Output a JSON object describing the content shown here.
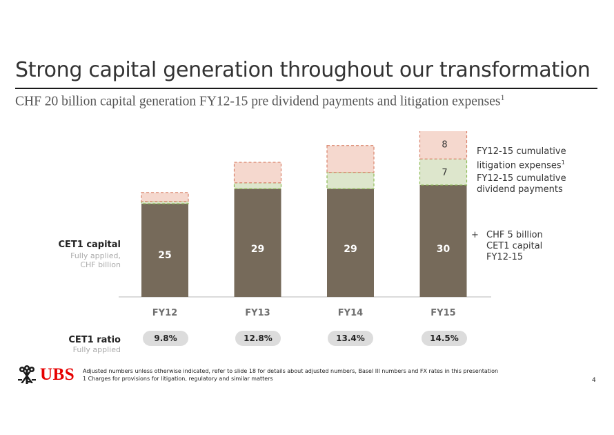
{
  "slide": {
    "title": "Strong capital generation throughout our transformation",
    "subtitle": "CHF 20 billion capital generation FY12-15 pre dividend payments and litigation expenses",
    "subtitle_sup": "1",
    "page_number": "4"
  },
  "labels": {
    "cet1_capital": "CET1 capital",
    "cet1_capital_sub1": "Fully applied,",
    "cet1_capital_sub2": "CHF billion",
    "cet1_ratio": "CET1 ratio",
    "cet1_ratio_sub": "Fully applied"
  },
  "legend": {
    "litigation_line1": "FY12-15 cumulative",
    "litigation_line2": "litigation expenses",
    "litigation_sup": "1",
    "dividend_line1": "FY12-15 cumulative",
    "dividend_line2": "dividend payments",
    "plus_sign": "+",
    "capital_line1": "CHF 5 billion",
    "capital_line2": "CET1 capital",
    "capital_line3": "FY12-15"
  },
  "ratios": [
    "9.8%",
    "12.8%",
    "13.4%",
    "14.5%"
  ],
  "logo": {
    "text": "UBS"
  },
  "footnotes": {
    "line1": "Adjusted numbers unless otherwise indicated, refer to slide 18 for details about adjusted numbers, Basel III numbers and FX rates in this presentation",
    "line2": "1 Charges for provisions for litigation, regulatory and similar matters"
  },
  "colors": {
    "capital": "#766a5a",
    "dividend": "#dde6cc",
    "dividend_border": "#8dbb55",
    "litigation": "#f5d8ce",
    "litigation_border": "#d9826a",
    "category_text": "#6f6f6f",
    "logo_red": "#e60000"
  },
  "chart_data": {
    "type": "bar",
    "stacked": true,
    "categories": [
      "FY12",
      "FY13",
      "FY14",
      "FY15"
    ],
    "series": [
      {
        "name": "CET1 capital",
        "values": [
          25,
          29,
          29,
          30
        ]
      },
      {
        "name": "FY12-15 cumulative dividend payments",
        "values": [
          0.6,
          1.6,
          4.4,
          7
        ]
      },
      {
        "name": "FY12-15 cumulative litigation expenses",
        "values": [
          2.4,
          5.5,
          7.2,
          8
        ]
      }
    ],
    "data_labels": {
      "CET1 capital": [
        "25",
        "29",
        "29",
        "30"
      ],
      "FY12-15 cumulative dividend payments": [
        "",
        "",
        "",
        "7"
      ],
      "FY12-15 cumulative litigation expenses": [
        "",
        "",
        "",
        "8"
      ]
    },
    "ylabel": "CET1 capital",
    "ylim": [
      0,
      45
    ],
    "grid": false,
    "legend": "right"
  }
}
